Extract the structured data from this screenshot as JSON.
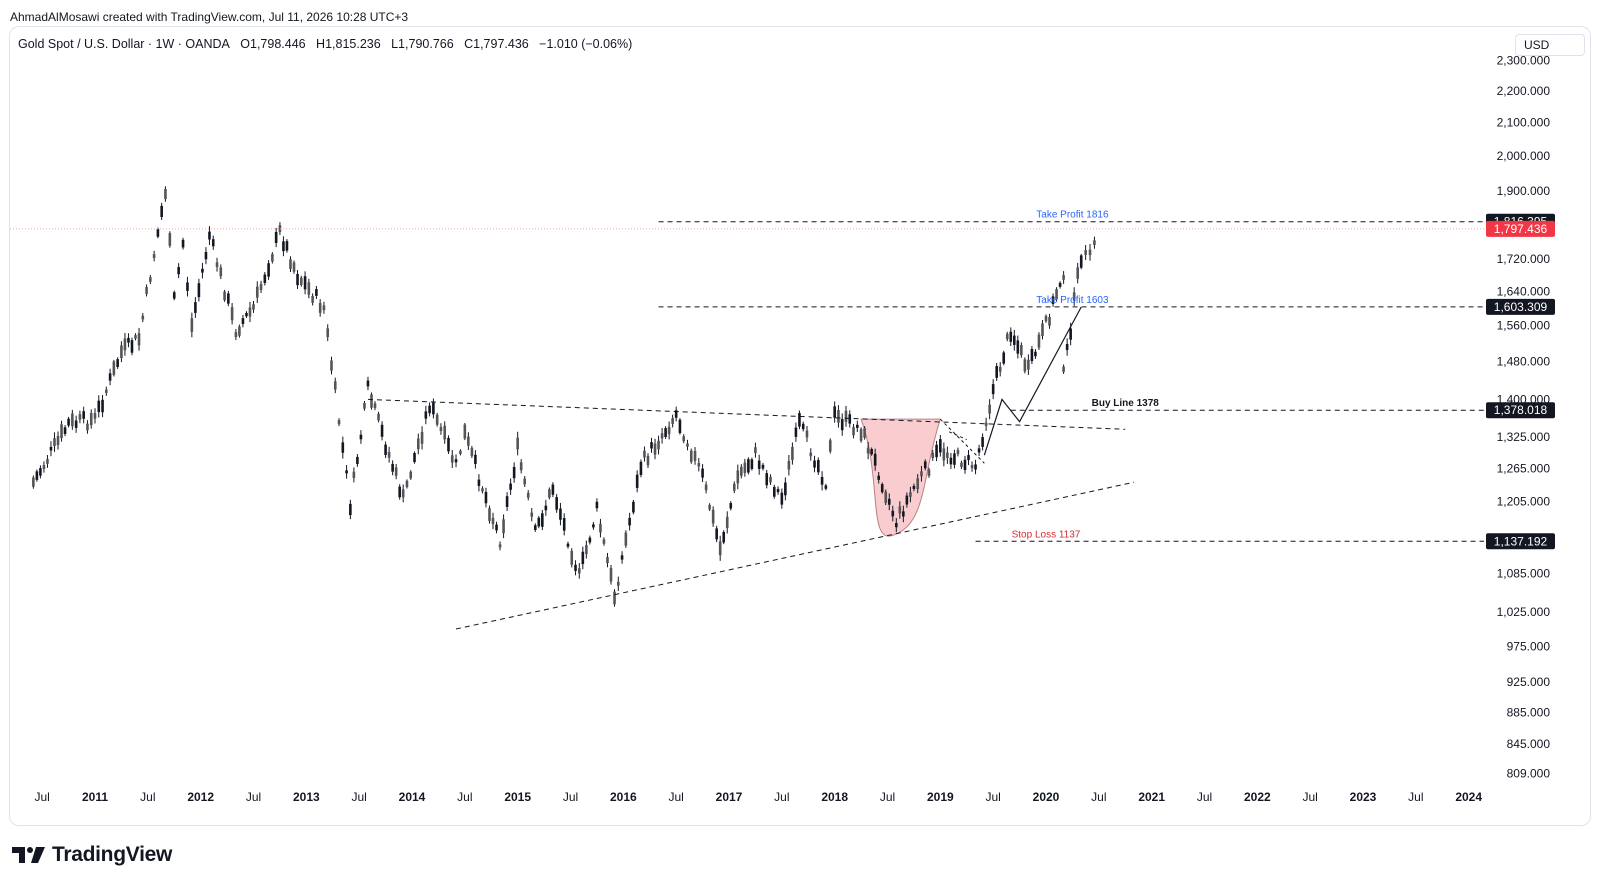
{
  "header": {
    "credit": "AhmadAlMosawi created with TradingView.com, Jul 11, 2026 10:28 UTC+3",
    "symbol": "Gold Spot / U.S. Dollar · 1W · OANDA",
    "open": "O1,798.446",
    "high": "H1,815.236",
    "low": "L1,790.766",
    "close": "C1,797.436",
    "change": "−1.010 (−0.06%)"
  },
  "currency_button": "USD",
  "brand": "TradingView",
  "colors": {
    "candle": "#131722",
    "last_price": "#f23645",
    "take_profit_text": "#2962ff",
    "stop_loss_text": "#d32f2f",
    "cup_fill": "#f8c4c8"
  },
  "chart_data": {
    "type": "candlestick",
    "symbol": "XAUUSD",
    "interval": "1W",
    "y_axis": {
      "scale": "log",
      "range": [
        809,
        2300
      ],
      "ticks": [
        "2,300.000",
        "2,200.000",
        "2,100.000",
        "2,000.000",
        "1,900.000",
        "1,720.000",
        "1,640.000",
        "1,560.000",
        "1,480.000",
        "1,400.000",
        "1,325.000",
        "1,265.000",
        "1,205.000",
        "1,085.000",
        "1,025.000",
        "975.000",
        "925.000",
        "885.000",
        "845.000",
        "809.000"
      ]
    },
    "x_axis": {
      "range": [
        "2010-06",
        "2024-01"
      ],
      "ticks": [
        {
          "label": "Jul",
          "date": "2010-07",
          "bold": false
        },
        {
          "label": "2011",
          "date": "2011-01",
          "bold": true
        },
        {
          "label": "Jul",
          "date": "2011-07",
          "bold": false
        },
        {
          "label": "2012",
          "date": "2012-01",
          "bold": true
        },
        {
          "label": "Jul",
          "date": "2012-07",
          "bold": false
        },
        {
          "label": "2013",
          "date": "2013-01",
          "bold": true
        },
        {
          "label": "Jul",
          "date": "2013-07",
          "bold": false
        },
        {
          "label": "2014",
          "date": "2014-01",
          "bold": true
        },
        {
          "label": "Jul",
          "date": "2014-07",
          "bold": false
        },
        {
          "label": "2015",
          "date": "2015-01",
          "bold": true
        },
        {
          "label": "Jul",
          "date": "2015-07",
          "bold": false
        },
        {
          "label": "2016",
          "date": "2016-01",
          "bold": true
        },
        {
          "label": "Jul",
          "date": "2016-07",
          "bold": false
        },
        {
          "label": "2017",
          "date": "2017-01",
          "bold": true
        },
        {
          "label": "Jul",
          "date": "2017-07",
          "bold": false
        },
        {
          "label": "2018",
          "date": "2018-01",
          "bold": true
        },
        {
          "label": "Jul",
          "date": "2018-07",
          "bold": false
        },
        {
          "label": "2019",
          "date": "2019-01",
          "bold": true
        },
        {
          "label": "Jul",
          "date": "2019-07",
          "bold": false
        },
        {
          "label": "2020",
          "date": "2020-01",
          "bold": true
        },
        {
          "label": "Jul",
          "date": "2020-07",
          "bold": false
        },
        {
          "label": "2021",
          "date": "2021-01",
          "bold": true
        },
        {
          "label": "Jul",
          "date": "2021-07",
          "bold": false
        },
        {
          "label": "2022",
          "date": "2022-01",
          "bold": true
        },
        {
          "label": "Jul",
          "date": "2022-07",
          "bold": false
        },
        {
          "label": "2023",
          "date": "2023-01",
          "bold": true
        },
        {
          "label": "Jul",
          "date": "2023-07",
          "bold": false
        },
        {
          "label": "2024",
          "date": "2024-01",
          "bold": true
        }
      ]
    },
    "price_path": [
      {
        "date": "2010-06",
        "price": 1240
      },
      {
        "date": "2010-10",
        "price": 1350
      },
      {
        "date": "2011-01",
        "price": 1360
      },
      {
        "date": "2011-04",
        "price": 1500
      },
      {
        "date": "2011-06",
        "price": 1530
      },
      {
        "date": "2011-09",
        "price": 1900
      },
      {
        "date": "2011-10",
        "price": 1620
      },
      {
        "date": "2011-11",
        "price": 1760
      },
      {
        "date": "2011-12",
        "price": 1560
      },
      {
        "date": "2012-02",
        "price": 1780
      },
      {
        "date": "2012-05",
        "price": 1550
      },
      {
        "date": "2012-07",
        "price": 1600
      },
      {
        "date": "2012-10",
        "price": 1790
      },
      {
        "date": "2012-12",
        "price": 1680
      },
      {
        "date": "2013-03",
        "price": 1600
      },
      {
        "date": "2013-06",
        "price": 1200
      },
      {
        "date": "2013-08",
        "price": 1420
      },
      {
        "date": "2013-12",
        "price": 1210
      },
      {
        "date": "2014-03",
        "price": 1390
      },
      {
        "date": "2014-06",
        "price": 1270
      },
      {
        "date": "2014-07",
        "price": 1330
      },
      {
        "date": "2014-11",
        "price": 1140
      },
      {
        "date": "2015-01",
        "price": 1300
      },
      {
        "date": "2015-03",
        "price": 1150
      },
      {
        "date": "2015-05",
        "price": 1230
      },
      {
        "date": "2015-08",
        "price": 1080
      },
      {
        "date": "2015-10",
        "price": 1190
      },
      {
        "date": "2015-12",
        "price": 1050
      },
      {
        "date": "2016-03",
        "price": 1270
      },
      {
        "date": "2016-07",
        "price": 1370
      },
      {
        "date": "2016-10",
        "price": 1250
      },
      {
        "date": "2016-12",
        "price": 1125
      },
      {
        "date": "2017-02",
        "price": 1250
      },
      {
        "date": "2017-04",
        "price": 1290
      },
      {
        "date": "2017-07",
        "price": 1210
      },
      {
        "date": "2017-09",
        "price": 1350
      },
      {
        "date": "2017-12",
        "price": 1240
      },
      {
        "date": "2018-01",
        "price": 1365
      },
      {
        "date": "2018-04",
        "price": 1340
      },
      {
        "date": "2018-06",
        "price": 1260
      },
      {
        "date": "2018-08",
        "price": 1170
      },
      {
        "date": "2018-10",
        "price": 1230
      },
      {
        "date": "2019-01",
        "price": 1300
      },
      {
        "date": "2019-05",
        "price": 1270
      },
      {
        "date": "2019-07",
        "price": 1420
      },
      {
        "date": "2019-09",
        "price": 1550
      },
      {
        "date": "2019-11",
        "price": 1460
      },
      {
        "date": "2020-01",
        "price": 1560
      },
      {
        "date": "2020-03",
        "price": 1690
      },
      {
        "date": "2020-03",
        "price": 1450
      },
      {
        "date": "2020-05",
        "price": 1730
      },
      {
        "date": "2020-06",
        "price": 1720
      },
      {
        "date": "2020-07",
        "price": 1810
      }
    ],
    "horizontal_levels": [
      {
        "name": "Take Profit 1816",
        "label": "Take Profit 1816",
        "value": 1816.395,
        "axis_label": "1,816.395",
        "from": "2016-05"
      },
      {
        "name": "Take Profit 1603",
        "label": "Take Profit 1603",
        "value": 1603.309,
        "axis_label": "1,603.309",
        "from": "2016-05"
      },
      {
        "name": "Buy Line 1378",
        "label": "Buy Line 1378",
        "value": 1378.018,
        "axis_label": "1,378.018",
        "from": "2019-09"
      },
      {
        "name": "Stop Loss 1137",
        "label": "Stop Loss 1137",
        "value": 1137.192,
        "axis_label": "1,137.192",
        "from": "2019-05"
      }
    ],
    "last_price": {
      "value": 1797.436,
      "axis_label": "1,797.436"
    },
    "trendlines": [
      {
        "name": "resistance",
        "from": {
          "date": "2013-08",
          "price": 1400
        },
        "to": {
          "date": "2020-10",
          "price": 1340
        }
      },
      {
        "name": "support",
        "from": {
          "date": "2014-06",
          "price": 1000
        },
        "to": {
          "date": "2020-11",
          "price": 1240
        }
      }
    ],
    "cup_pattern": {
      "start": {
        "date": "2018-04",
        "price": 1360
      },
      "bottom": {
        "date": "2018-08",
        "price": 1170
      },
      "end": {
        "date": "2019-01",
        "price": 1360
      }
    },
    "projection_path": [
      {
        "date": "2019-06",
        "price": 1290
      },
      {
        "date": "2019-08",
        "price": 1400
      },
      {
        "date": "2019-10",
        "price": 1355
      },
      {
        "date": "2020-05",
        "price": 1603
      }
    ]
  }
}
